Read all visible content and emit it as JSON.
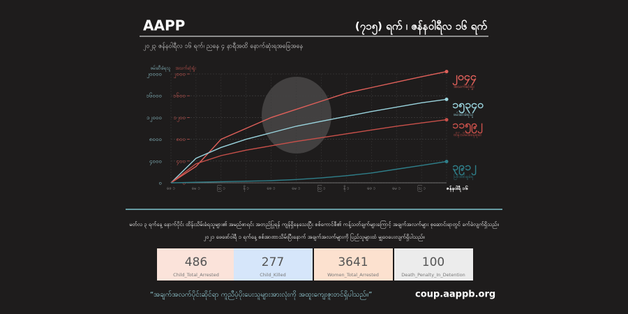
{
  "header": {
    "brand": "AAPP",
    "day_title": "(၇၁၅) ရက် ၊ ဇန်နဝါရီလ ၁၆ ရက်",
    "subtitle": "၂၀၂၃ ဇန်နဝါရီလ ၁၆ ရက်၊ ညနေ ၄ နာရီအထိ နောက်ဆုံးရအခြေအနေ"
  },
  "chart_data": {
    "type": "line",
    "y_label": "ဖမ်းဆီးခံရသူ",
    "y2_label": "အသက်ဆုံးရှုံး",
    "categories": [
      "ဖေ ၁",
      "မေ ၁",
      "ဩ ၁",
      "နို ၁",
      "ဖေ ၁",
      "မေ ၁",
      "ဩ ၁",
      "နို ၁",
      "ဖေ ၁",
      "မေ ၁",
      "ဩ ၁",
      "ဇန်နဝါရီ ၁၆"
    ],
    "ylim": [
      0,
      20000
    ],
    "yticks": [
      {
        "value": 0,
        "label": "၀"
      },
      {
        "value": 4000,
        "label": "၄၀၀၀"
      },
      {
        "value": 8000,
        "label": "၈၀၀၀"
      },
      {
        "value": 12000,
        "label": "၁၂၀၀၀"
      },
      {
        "value": 16000,
        "label": "၁၆၀၀၀"
      },
      {
        "value": 20000,
        "label": "၂၀၀၀၀"
      }
    ],
    "y2lim": [
      0,
      2000
    ],
    "y2ticks": [
      {
        "value": 0,
        "label": "၀"
      },
      {
        "value": 400,
        "label": "၄၀၀"
      },
      {
        "value": 800,
        "label": "၈၀၀"
      },
      {
        "value": 1200,
        "label": "၁၂၀၀"
      },
      {
        "value": 1600,
        "label": "၁၆၀၀"
      },
      {
        "value": 2000,
        "label": "၂၀၀၀"
      }
    ],
    "grid": true,
    "series": [
      {
        "name": "အသက်ဆုံးရှုံး",
        "color": "#e0605a",
        "axis": "y2",
        "values": [
          0,
          300,
          800,
          1000,
          1200,
          1350,
          1500,
          1650,
          1750,
          1850,
          1950,
          2044
        ],
        "value_labels": [
          null,
          null,
          null,
          null,
          null,
          null,
          null,
          null,
          null,
          null,
          null,
          "၂၀၄၄"
        ]
      },
      {
        "name": "ဖမ်းဆီးခံရသူ",
        "color": "#9ad4de",
        "values": [
          0,
          4500,
          6500,
          8000,
          9200,
          10400,
          11300,
          12200,
          13100,
          13900,
          14700,
          15340
        ],
        "value_labels": [
          null,
          null,
          null,
          null,
          null,
          null,
          null,
          null,
          null,
          null,
          null,
          "၁၅၃၄၀"
        ]
      },
      {
        "name": "ထိန်းသိမ်းခံနေရဆဲ",
        "color": "#c9504a",
        "values": [
          0,
          3500,
          5000,
          6000,
          6800,
          7600,
          8300,
          9000,
          9700,
          10400,
          11000,
          11592
        ],
        "value_labels": [
          null,
          null,
          null,
          null,
          null,
          null,
          null,
          null,
          null,
          null,
          null,
          "၁၁၅၉၂"
        ]
      },
      {
        "name": "ပြစ်ဒဏ်ချခံရ",
        "color": "#2f7f8a",
        "values": [
          0,
          100,
          200,
          300,
          400,
          600,
          900,
          1300,
          1800,
          2500,
          3200,
          3912
        ],
        "value_labels": [
          null,
          null,
          null,
          null,
          null,
          null,
          null,
          null,
          null,
          null,
          null,
          "၃၉၁၂"
        ]
      }
    ]
  },
  "notes": [
    "မတ်လ ၃ ရက်နေ့ နောက်ပိုင်း ထိန်းသိမ်းခံရသူများ၏ အမည်စာရင်း အတည်ပြုရန် ကျန်ရှိနေသေးပြီး စစ်ကောင်စီ၏ ကန့်သတ်ချက်များကြောင့် အချက်အလက်များ စုဆောင်းရာတွင် ခက်ခဲလျက်ရှိသည်။",
    "၂၀၂၁ ဖေဖော်ဝါရီ ၁ ရက်နေ့ စစ်အာဏာသိမ်းပြီးနောက် အချက်အလက်များကို ပြည်သူများထံ မျှဝေပေးလျက်ရှိပါသည်။"
  ],
  "stats": [
    {
      "value": 486,
      "label": "Child_Total_Arrested"
    },
    {
      "value": 277,
      "label": "Child_Killed"
    },
    {
      "value": 3641,
      "label": "Women_Total_Arrested"
    },
    {
      "value": 100,
      "label": "Death_Penalty_In_Detention"
    }
  ],
  "footer": {
    "quote": "“အချက်အလက်ပိုင်းဆိုင်ရာ ကူညီပံ့ပိုးပေးသူများအားလုံးကို အထူးကျေးဇူးတင်ရှိပါသည်။”",
    "url": "coup.aappb.org"
  }
}
